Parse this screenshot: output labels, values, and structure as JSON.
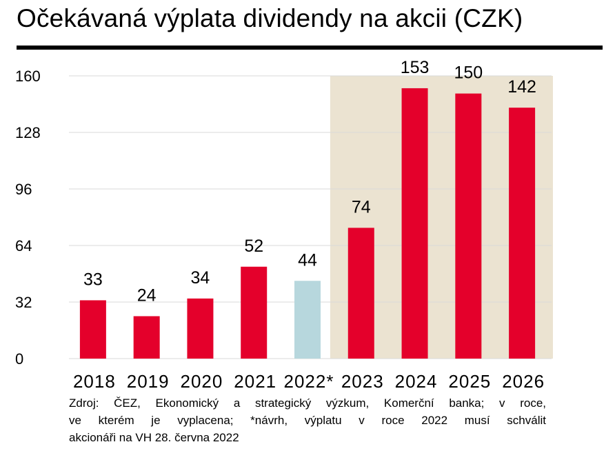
{
  "title": "Očekávaná výplata dividendy na akcii (CZK)",
  "footnote_lines": [
    "Zdroj: ČEZ, Ekonomický a strategický výzkum, Komerční banka;  v roce,",
    "ve kterém je vyplacena; *návrh, výplatu v roce 2022 musí schválit",
    "akcionáři na VH 28. června 2022"
  ],
  "colors": {
    "bar": "#e4002b",
    "bar_highlight": "#b7d7dd",
    "forecast_band": "#ebe3d1",
    "grid": "#d9d9d9",
    "text": "#000000"
  },
  "chart_data": {
    "type": "bar",
    "categories": [
      "2018",
      "2019",
      "2020",
      "2021",
      "2022*",
      "2023",
      "2024",
      "2025",
      "2026"
    ],
    "values": [
      33,
      24,
      34,
      52,
      44,
      74,
      153,
      150,
      142
    ],
    "data_labels": [
      "33",
      "24",
      "34",
      "52",
      "44",
      "74",
      "153",
      "150",
      "142"
    ],
    "highlight_category": "2022*",
    "forecast_categories": [
      "2023",
      "2024",
      "2025",
      "2026"
    ],
    "ylim": [
      0,
      160
    ],
    "yticks": [
      0,
      32,
      64,
      96,
      128,
      160
    ],
    "grid": "horizontal",
    "xlabel": "",
    "ylabel": ""
  }
}
